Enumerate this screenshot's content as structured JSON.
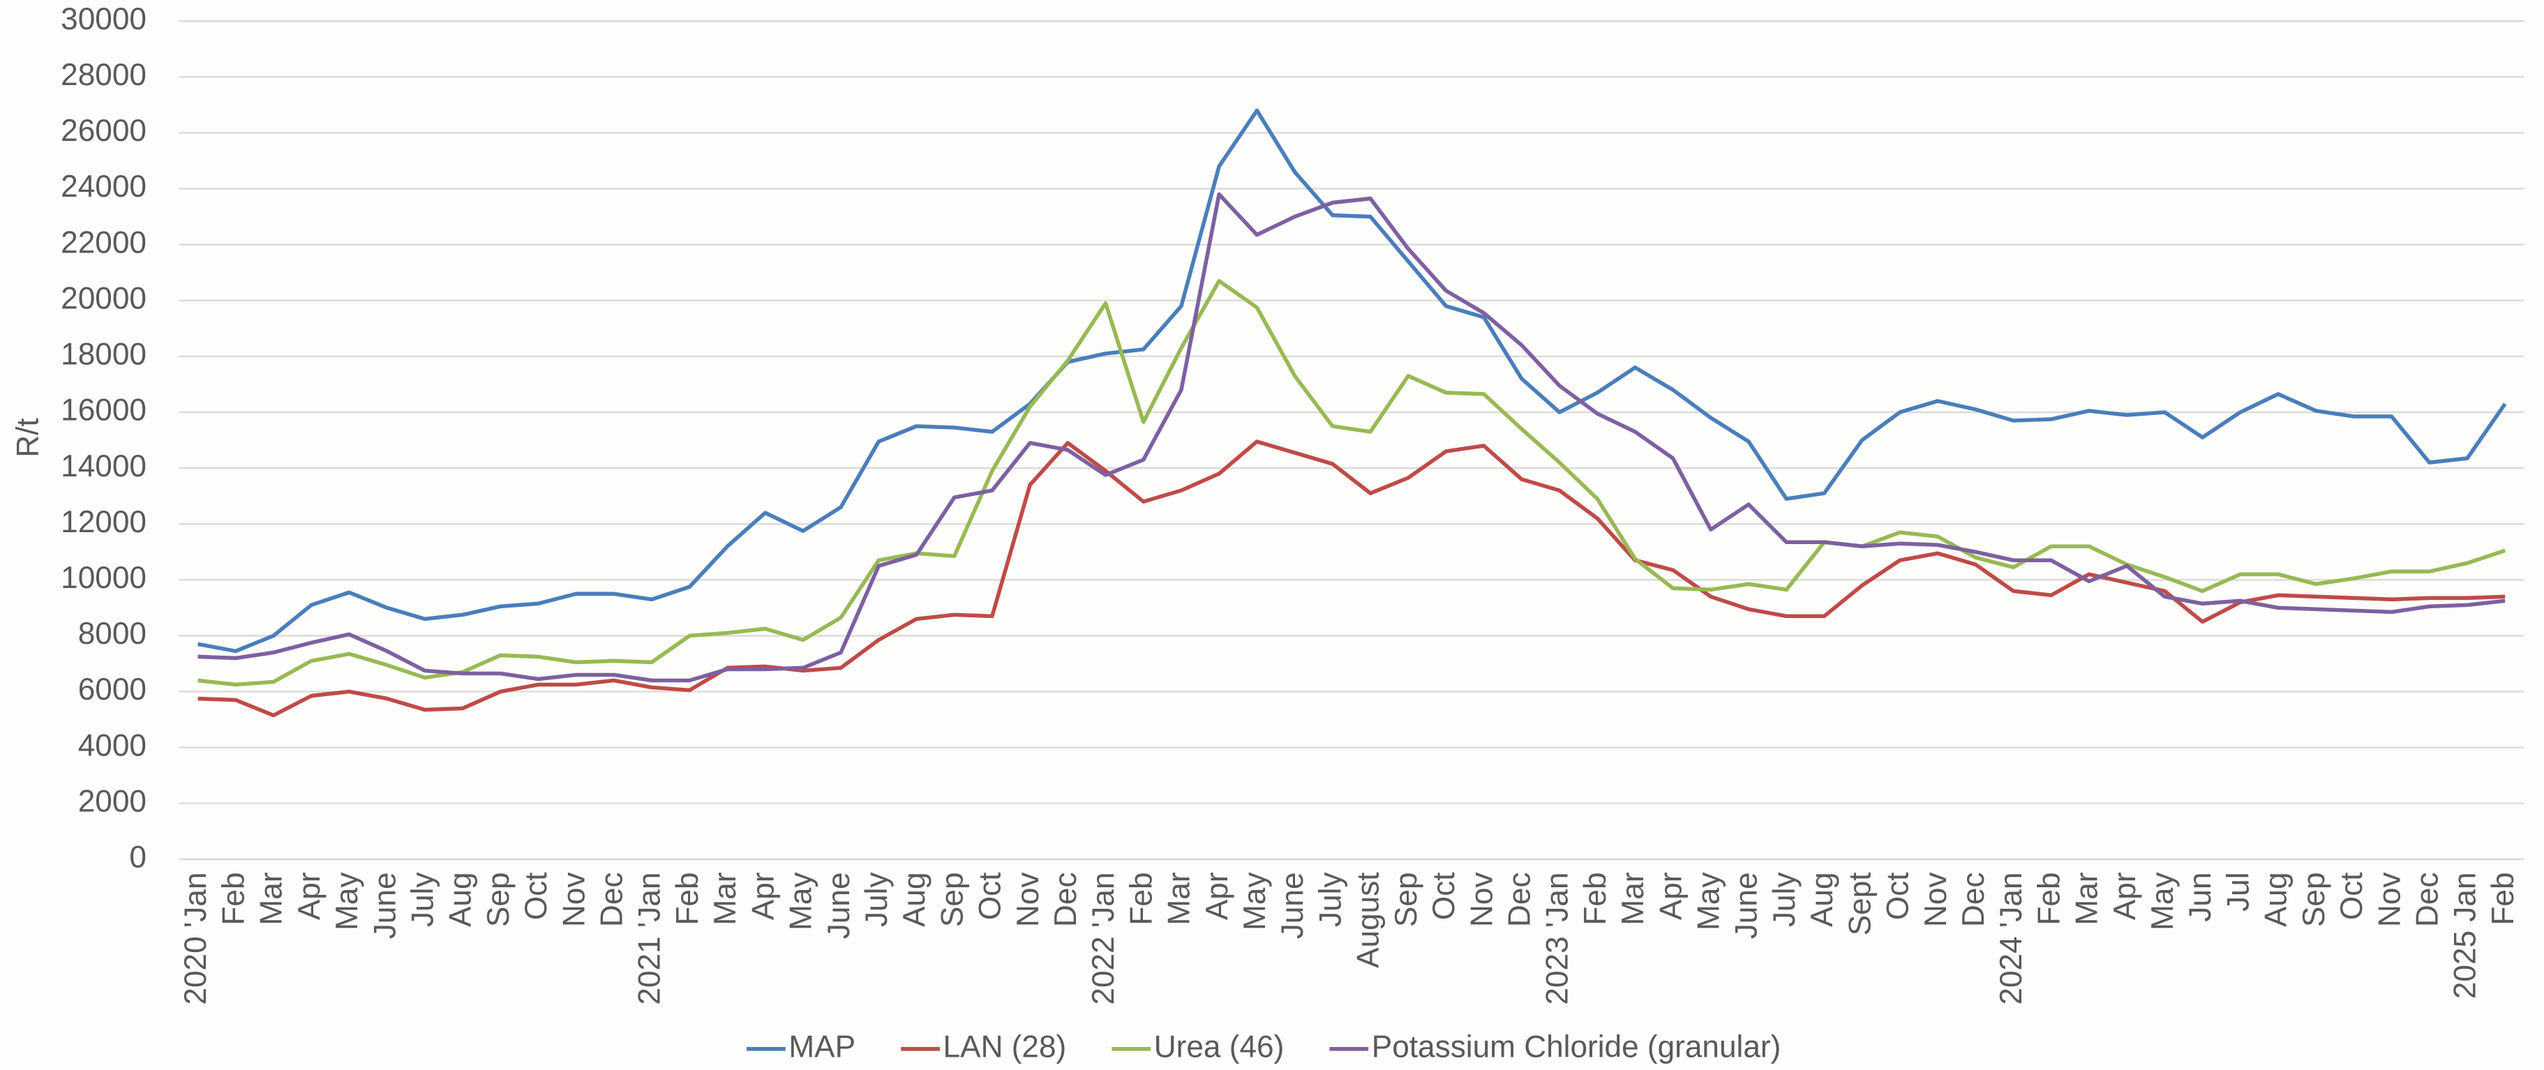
{
  "chart_data": {
    "type": "line",
    "y_label": "R/t",
    "categories": [
      "2020 'Jan",
      "Feb",
      "Mar",
      "Apr",
      "May",
      "June",
      "July",
      "Aug",
      "Sep",
      "Oct",
      "Nov",
      "Dec",
      "2021 'Jan",
      "Feb",
      "Mar",
      "Apr",
      "May",
      "June",
      "July",
      "Aug",
      "Sep",
      "Oct",
      "Nov",
      "Dec",
      "2022 'Jan",
      "Feb",
      "Mar",
      "Apr",
      "May",
      "June",
      "July",
      "August",
      "Sep",
      "Oct",
      "Nov",
      "Dec",
      "2023 'Jan",
      "Feb",
      "Mar",
      "Apr",
      "May",
      "June",
      "July",
      "Aug",
      "Sept",
      "Oct",
      "Nov",
      "Dec",
      "2024 'Jan",
      "Feb",
      "Mar",
      "Apr",
      "May",
      "Jun",
      "Jul",
      "Aug",
      "Sep",
      "Oct",
      "Nov",
      "Dec",
      "2025 Jan",
      "Feb"
    ],
    "series": [
      {
        "name": "MAP",
        "color": "#4a7ebb",
        "values": [
          7700,
          7450,
          8000,
          9100,
          9550,
          9000,
          8600,
          8750,
          9050,
          9150,
          9500,
          9500,
          9300,
          9750,
          11200,
          12400,
          11750,
          12600,
          14950,
          15500,
          15450,
          15300,
          16300,
          17800,
          18100,
          18250,
          19800,
          24800,
          26800,
          24600,
          23050,
          23000,
          21400,
          19800,
          19400,
          17200,
          16000,
          16700,
          17600,
          16800,
          15800,
          14950,
          12900,
          13100,
          15000,
          16000,
          16400,
          16100,
          15700,
          15750,
          16050,
          15900,
          16000,
          15100,
          16000,
          16650,
          16050,
          15850,
          15850,
          14200,
          14350,
          16300
        ]
      },
      {
        "name": "LAN (28)",
        "color": "#be4b48",
        "values": [
          5750,
          5700,
          5150,
          5850,
          6000,
          5750,
          5350,
          5400,
          6000,
          6250,
          6250,
          6400,
          6150,
          6050,
          6850,
          6900,
          6750,
          6850,
          7850,
          8600,
          8750,
          8700,
          13400,
          14900,
          13900,
          12800,
          13200,
          13800,
          14950,
          14550,
          14150,
          13100,
          13650,
          14600,
          14800,
          13600,
          13200,
          12200,
          10700,
          10350,
          9400,
          8950,
          8700,
          8700,
          9800,
          10700,
          10950,
          10550,
          9600,
          9450,
          10200,
          9900,
          9600,
          8500,
          9200,
          9450,
          9400,
          9350,
          9300,
          9350,
          9350,
          9400
        ]
      },
      {
        "name": "Urea (46)",
        "color": "#98b954",
        "values": [
          6400,
          6250,
          6350,
          7100,
          7350,
          6950,
          6500,
          6700,
          7300,
          7250,
          7050,
          7100,
          7050,
          8000,
          8100,
          8250,
          7850,
          8650,
          10700,
          10950,
          10850,
          13900,
          16200,
          17850,
          19900,
          15650,
          18300,
          20700,
          19750,
          17300,
          15500,
          15300,
          17300,
          16700,
          16650,
          15400,
          14200,
          12900,
          10750,
          9700,
          9650,
          9850,
          9650,
          11350,
          11200,
          11700,
          11550,
          10800,
          10450,
          11200,
          11200,
          10550,
          10100,
          9600,
          10200,
          10200,
          9850,
          10050,
          10300,
          10300,
          10600,
          11050
        ]
      },
      {
        "name": "Potassium Chloride (granular)",
        "color": "#7d60a0",
        "values": [
          7250,
          7200,
          7400,
          7750,
          8050,
          7450,
          6750,
          6650,
          6650,
          6450,
          6600,
          6600,
          6400,
          6400,
          6800,
          6800,
          6850,
          7400,
          10500,
          10900,
          12950,
          13200,
          14900,
          14650,
          13750,
          14300,
          16800,
          23800,
          22350,
          23000,
          23500,
          23650,
          21850,
          20350,
          19550,
          18400,
          16950,
          15950,
          15300,
          14350,
          11800,
          12700,
          11350,
          11350,
          11200,
          11300,
          11250,
          11000,
          10700,
          10700,
          9950,
          10500,
          9400,
          9150,
          9250,
          9000,
          8950,
          8900,
          8850,
          9050,
          9100,
          9250
        ]
      }
    ],
    "ylim": [
      0,
      30000
    ],
    "yticks": [
      0,
      2000,
      4000,
      6000,
      8000,
      10000,
      12000,
      14000,
      16000,
      18000,
      20000,
      22000,
      24000,
      26000,
      28000,
      30000
    ],
    "grid": true,
    "legend": "bottom"
  }
}
